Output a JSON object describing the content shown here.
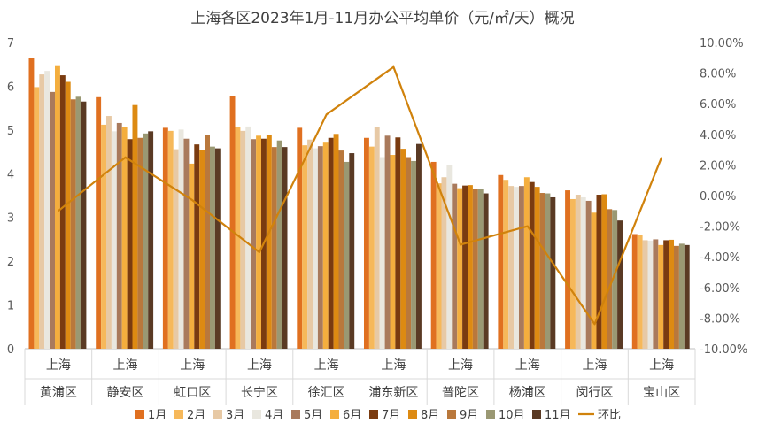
{
  "chart_data": {
    "type": "bar",
    "title": "上海各区2023年1月-11月办公平均单价（元/㎡/天）概况",
    "category_group": "上海",
    "categories": [
      "黄浦区",
      "静安区",
      "虹口区",
      "长宁区",
      "徐汇区",
      "浦东新区",
      "普陀区",
      "杨浦区",
      "闵行区",
      "宝山区"
    ],
    "series": [
      {
        "name": "1月",
        "color": "#E07020",
        "values": [
          6.65,
          5.75,
          5.05,
          5.78,
          5.05,
          4.82,
          4.27,
          3.97,
          3.62,
          2.62
        ]
      },
      {
        "name": "2月",
        "color": "#F6B85A",
        "values": [
          5.98,
          5.12,
          4.98,
          5.07,
          4.65,
          4.62,
          3.78,
          3.86,
          3.42,
          2.6
        ]
      },
      {
        "name": "3月",
        "color": "#E7C9A5",
        "values": [
          6.27,
          5.32,
          4.56,
          4.98,
          4.78,
          5.06,
          3.92,
          3.72,
          3.52,
          2.48
        ]
      },
      {
        "name": "4月",
        "color": "#E9E7DF",
        "values": [
          6.35,
          4.97,
          5.01,
          5.08,
          4.58,
          4.38,
          4.2,
          3.7,
          3.46,
          2.47
        ]
      },
      {
        "name": "5月",
        "color": "#A97A5C",
        "values": [
          5.87,
          5.16,
          4.8,
          4.79,
          4.63,
          4.87,
          3.77,
          3.72,
          3.38,
          2.5
        ]
      },
      {
        "name": "6月",
        "color": "#F4AE3E",
        "values": [
          6.46,
          5.07,
          4.23,
          4.87,
          4.71,
          4.43,
          3.67,
          3.92,
          3.11,
          2.37
        ]
      },
      {
        "name": "7月",
        "color": "#7A3B10",
        "values": [
          6.25,
          4.79,
          4.67,
          4.8,
          4.82,
          4.83,
          3.73,
          3.81,
          3.52,
          2.48
        ]
      },
      {
        "name": "8月",
        "color": "#DD8A12",
        "values": [
          6.1,
          5.57,
          4.55,
          4.88,
          4.91,
          4.57,
          3.74,
          3.7,
          3.53,
          2.49
        ]
      },
      {
        "name": "9月",
        "color": "#B9783C",
        "values": [
          5.7,
          4.82,
          4.88,
          4.61,
          4.53,
          4.38,
          3.66,
          3.56,
          3.19,
          2.35
        ]
      },
      {
        "name": "10月",
        "color": "#9A9873",
        "values": [
          5.76,
          4.92,
          4.62,
          4.76,
          4.27,
          4.29,
          3.66,
          3.55,
          3.17,
          2.4
        ]
      },
      {
        "name": "11月",
        "color": "#5A3A24",
        "values": [
          5.65,
          4.97,
          4.58,
          4.61,
          4.47,
          4.68,
          3.55,
          3.46,
          2.93,
          2.37
        ]
      }
    ],
    "line_series": {
      "name": "环比",
      "color": "#D0820C",
      "unit": "%",
      "values": [
        -1.0,
        2.5,
        -0.3,
        -3.7,
        5.3,
        8.4,
        -3.2,
        -2.0,
        -8.4,
        2.5
      ]
    },
    "ylim": [
      0,
      7
    ],
    "y_ticks": [
      0,
      1,
      2,
      3,
      4,
      5,
      6,
      7
    ],
    "y2lim": [
      -10,
      10
    ],
    "y2_ticks": [
      "10.00%",
      "8.00%",
      "6.00%",
      "4.00%",
      "2.00%",
      "0.00%",
      "-2.00%",
      "-4.00%",
      "-6.00%",
      "-8.00%",
      "-10.00%"
    ],
    "legend_position": "bottom",
    "grid": false
  }
}
